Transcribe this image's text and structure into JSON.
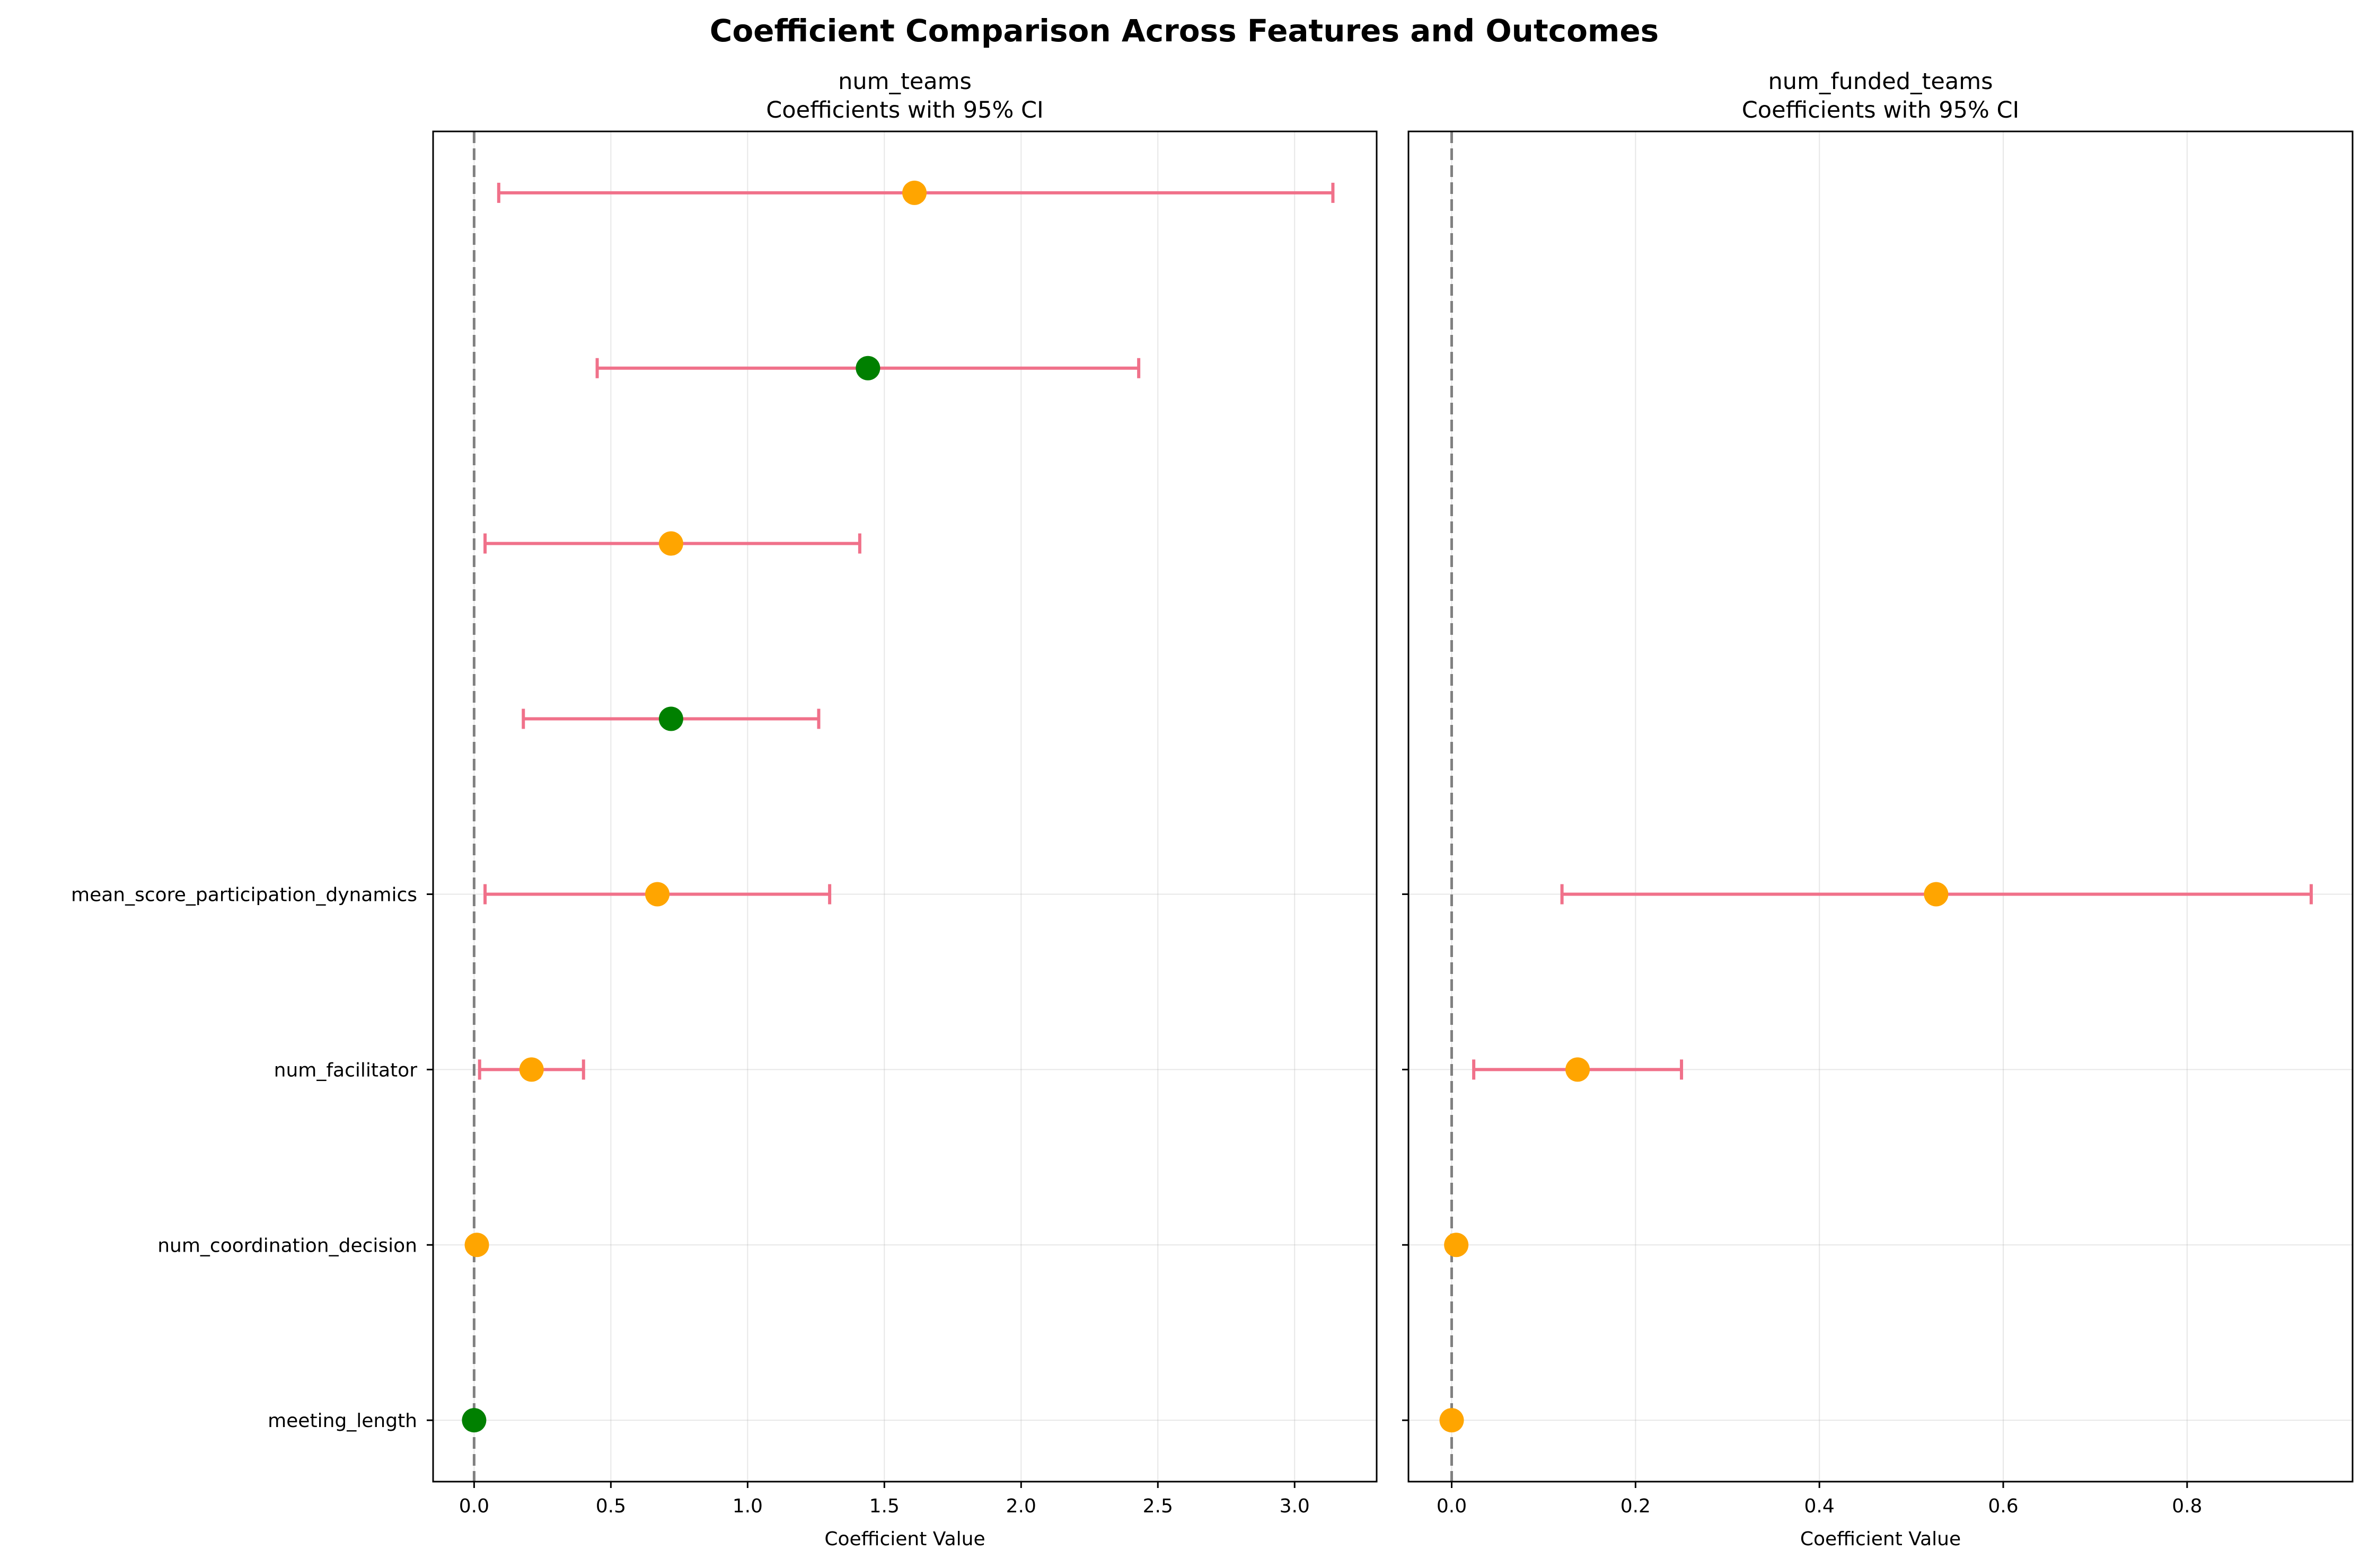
{
  "title": "Coefficient Comparison Across Features and Outcomes",
  "colors": {
    "ci_line": "#f0718a",
    "significant_point": "#ffa500",
    "nonsignificant_point": "#008000",
    "zero_line": "#808080"
  },
  "chart_data": [
    {
      "type": "scatter",
      "title": "num_teams\nCoefficients with 95% CI",
      "title_lines": [
        "num_teams",
        "Coefficients with 95% CI"
      ],
      "xlabel": "Coefficient Value",
      "ylabel": "",
      "xlim": [
        -0.15,
        3.3
      ],
      "xticks": [
        0.0,
        0.5,
        1.0,
        1.5,
        2.0,
        2.5,
        3.0
      ],
      "xtick_labels": [
        "0.0",
        "0.5",
        "1.0",
        "1.5",
        "2.0",
        "2.5",
        "3.0"
      ],
      "ylim": [
        -0.35,
        7.35
      ],
      "yticks": [
        0,
        1,
        2,
        3
      ],
      "ytick_labels": [
        "meeting_length",
        "num_coordination_decision",
        "num_facilitator",
        "mean_score_participation_dynamics"
      ],
      "grid": true,
      "zero_line": 0,
      "points": [
        {
          "y": 0,
          "coef": 0.0,
          "ci_low": 0.0,
          "ci_high": 0.0,
          "color": "#008000"
        },
        {
          "y": 1,
          "coef": 0.01,
          "ci_low": 0.01,
          "ci_high": 0.01,
          "color": "#ffa500"
        },
        {
          "y": 2,
          "coef": 0.21,
          "ci_low": 0.02,
          "ci_high": 0.4,
          "color": "#ffa500"
        },
        {
          "y": 3,
          "coef": 0.67,
          "ci_low": 0.04,
          "ci_high": 1.3,
          "color": "#ffa500"
        },
        {
          "y": 4,
          "coef": 0.72,
          "ci_low": 0.18,
          "ci_high": 1.26,
          "color": "#008000"
        },
        {
          "y": 5,
          "coef": 0.72,
          "ci_low": 0.04,
          "ci_high": 1.41,
          "color": "#ffa500"
        },
        {
          "y": 6,
          "coef": 1.44,
          "ci_low": 0.45,
          "ci_high": 2.43,
          "color": "#008000"
        },
        {
          "y": 7,
          "coef": 1.61,
          "ci_low": 0.09,
          "ci_high": 3.14,
          "color": "#ffa500"
        }
      ]
    },
    {
      "type": "scatter",
      "title": "num_funded_teams\nCoefficients with 95% CI",
      "title_lines": [
        "num_funded_teams",
        "Coefficients with 95% CI"
      ],
      "xlabel": "Coefficient Value",
      "ylabel": "",
      "xlim": [
        -0.047,
        0.98
      ],
      "xticks": [
        0.0,
        0.2,
        0.4,
        0.6,
        0.8
      ],
      "xtick_labels": [
        "0.0",
        "0.2",
        "0.4",
        "0.6",
        "0.8"
      ],
      "ylim": [
        -0.35,
        7.35
      ],
      "yticks": [
        0,
        1,
        2,
        3
      ],
      "ytick_labels": [],
      "grid": true,
      "zero_line": 0,
      "points": [
        {
          "y": 0,
          "coef": 0.0,
          "ci_low": 0.0,
          "ci_high": 0.0,
          "color": "#ffa500"
        },
        {
          "y": 1,
          "coef": 0.005,
          "ci_low": 0.005,
          "ci_high": 0.005,
          "color": "#ffa500"
        },
        {
          "y": 2,
          "coef": 0.137,
          "ci_low": 0.024,
          "ci_high": 0.25,
          "color": "#ffa500"
        },
        {
          "y": 3,
          "coef": 0.527,
          "ci_low": 0.12,
          "ci_high": 0.935,
          "color": "#ffa500"
        }
      ]
    }
  ]
}
